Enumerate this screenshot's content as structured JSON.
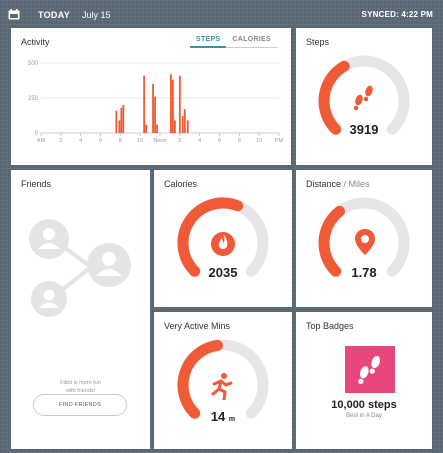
{
  "header": {
    "today": "TODAY",
    "date": "July 15",
    "synced": "SYNCED: 4:22 PM"
  },
  "colors": {
    "accent": "#f05a36",
    "track": "#e6e6e6",
    "teal": "#2a9aa6",
    "badge": "#e8477b"
  },
  "activity": {
    "title": "Activity",
    "tabs": [
      "STEPS",
      "CALORIES"
    ],
    "active_tab": "STEPS",
    "chart_data": {
      "type": "bar",
      "title": "",
      "ylim": [
        0,
        500
      ],
      "y_ticks": [
        "500",
        "250",
        "0"
      ],
      "x_ticks": [
        "AM",
        "2",
        "4",
        "6",
        "8",
        "10",
        "Noon",
        "2",
        "4",
        "6",
        "8",
        "10",
        "PM"
      ],
      "bars": [
        {
          "hour": 7.6,
          "value": 160
        },
        {
          "hour": 7.9,
          "value": 90
        },
        {
          "hour": 8.1,
          "value": 180
        },
        {
          "hour": 8.3,
          "value": 200
        },
        {
          "hour": 10.4,
          "value": 410
        },
        {
          "hour": 10.6,
          "value": 60
        },
        {
          "hour": 11.3,
          "value": 350
        },
        {
          "hour": 11.5,
          "value": 260
        },
        {
          "hour": 11.7,
          "value": 60
        },
        {
          "hour": 13.1,
          "value": 420
        },
        {
          "hour": 13.3,
          "value": 380
        },
        {
          "hour": 13.5,
          "value": 90
        },
        {
          "hour": 14.0,
          "value": 410
        },
        {
          "hour": 14.3,
          "value": 120
        },
        {
          "hour": 14.5,
          "value": 170
        },
        {
          "hour": 14.8,
          "value": 90
        }
      ]
    }
  },
  "steps": {
    "title": "Steps",
    "value": "3919",
    "progress": 0.39,
    "icon": "footprints-icon"
  },
  "friends": {
    "title": "Friends",
    "note_line1": "Fitbit is more fun",
    "note_line2": "with friends!",
    "button": "FIND FRIENDS"
  },
  "calories": {
    "title": "Calories",
    "value": "2035",
    "progress": 0.58,
    "icon": "flame-icon"
  },
  "distance": {
    "title": "Distance",
    "subtitle": " / Miles",
    "value": "1.78",
    "progress": 0.36,
    "icon": "location-pin-icon"
  },
  "active": {
    "title": "Very Active Mins",
    "value": "14",
    "unit": "m",
    "progress": 0.47,
    "icon": "running-man-icon"
  },
  "badges": {
    "title": "Top Badges",
    "badge_name": "10,000 steps",
    "badge_sub": "Best in A Day",
    "icon": "footprints-icon"
  }
}
